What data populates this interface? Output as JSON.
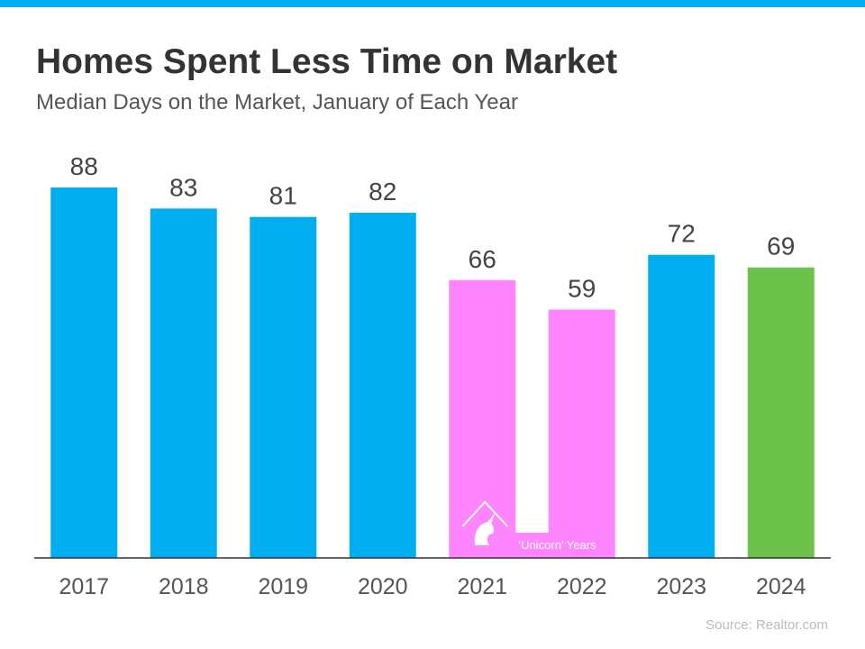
{
  "chart_data": {
    "type": "bar",
    "title": "Homes Spent Less Time on Market",
    "subtitle": "Median Days on the Market, January of Each Year",
    "categories": [
      "2017",
      "2018",
      "2019",
      "2020",
      "2021",
      "2022",
      "2023",
      "2024"
    ],
    "values": [
      88,
      83,
      81,
      82,
      66,
      59,
      72,
      69
    ],
    "colors": [
      "#00aeef",
      "#00aeef",
      "#00aeef",
      "#00aeef",
      "#ff85ff",
      "#ff85ff",
      "#00aeef",
      "#6cc24a"
    ],
    "annotation": "‘Unicorn’ Years",
    "source": "Source: Realtor.com"
  }
}
